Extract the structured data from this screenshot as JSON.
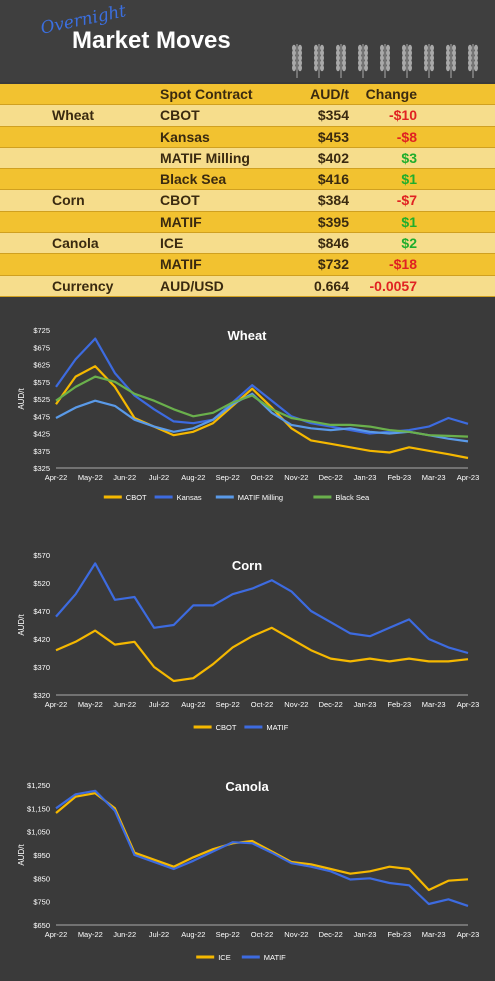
{
  "header": {
    "script_text": "Overnight",
    "title": "Market Moves"
  },
  "table": {
    "columns": [
      "Spot Contract",
      "AUD/t",
      "Change"
    ],
    "rows": [
      {
        "commodity": "Wheat",
        "contract": "CBOT",
        "price": "$354",
        "change": "-$10",
        "dir": "neg"
      },
      {
        "commodity": "",
        "contract": "Kansas",
        "price": "$453",
        "change": "-$8",
        "dir": "neg"
      },
      {
        "commodity": "",
        "contract": "MATIF Milling",
        "price": "$402",
        "change": "$3",
        "dir": "pos"
      },
      {
        "commodity": "",
        "contract": "Black Sea",
        "price": "$416",
        "change": "$1",
        "dir": "pos"
      },
      {
        "commodity": "Corn",
        "contract": "CBOT",
        "price": "$384",
        "change": "-$7",
        "dir": "neg"
      },
      {
        "commodity": "",
        "contract": "MATIF",
        "price": "$395",
        "change": "$1",
        "dir": "pos"
      },
      {
        "commodity": "Canola",
        "contract": "ICE",
        "price": "$846",
        "change": "$2",
        "dir": "pos"
      },
      {
        "commodity": "",
        "contract": "MATIF",
        "price": "$732",
        "change": "-$18",
        "dir": "neg"
      },
      {
        "commodity": "Currency",
        "contract": "AUD/USD",
        "price": "0.664",
        "change": "-0.0057",
        "dir": "neg"
      }
    ]
  },
  "colors": {
    "gold": "#f2c230",
    "pale": "#f6dd8c",
    "neg": "#e02222",
    "pos": "#1fae2c",
    "cbot": "#f5b800",
    "kansas": "#3d6be0",
    "matif_milling": "#5a9ae8",
    "black_sea": "#6ab04c"
  },
  "chart_data": [
    {
      "type": "line",
      "title": "Wheat",
      "ylabel": "AUD/t",
      "xlabel": "",
      "x_ticks": [
        "Apr-22",
        "May-22",
        "Jun-22",
        "Jul-22",
        "Aug-22",
        "Sep-22",
        "Oct-22",
        "Nov-22",
        "Dec-22",
        "Jan-23",
        "Feb-23",
        "Mar-23",
        "Apr-23"
      ],
      "y_ticks": [
        "$325",
        "$375",
        "$425",
        "$475",
        "$525",
        "$575",
        "$625",
        "$675",
        "$725"
      ],
      "ylim": [
        325,
        725
      ],
      "legend_position": "bottom",
      "series": [
        {
          "name": "CBOT",
          "color": "#f5b800",
          "values": [
            510,
            590,
            620,
            560,
            470,
            445,
            420,
            430,
            455,
            505,
            555,
            500,
            440,
            405,
            395,
            385,
            375,
            370,
            385,
            375,
            365,
            354
          ]
        },
        {
          "name": "Kansas",
          "color": "#3d6be0",
          "values": [
            560,
            640,
            700,
            600,
            535,
            495,
            460,
            455,
            465,
            515,
            565,
            520,
            475,
            455,
            445,
            435,
            425,
            430,
            435,
            445,
            470,
            453
          ]
        },
        {
          "name": "MATIF Milling",
          "color": "#5a9ae8",
          "values": [
            470,
            500,
            520,
            505,
            465,
            445,
            430,
            440,
            465,
            510,
            540,
            485,
            450,
            440,
            435,
            440,
            430,
            425,
            430,
            420,
            410,
            402
          ]
        },
        {
          "name": "Black Sea",
          "color": "#6ab04c",
          "values": [
            520,
            560,
            590,
            575,
            540,
            520,
            495,
            475,
            485,
            515,
            535,
            495,
            470,
            460,
            450,
            450,
            445,
            435,
            430,
            420,
            418,
            416
          ]
        }
      ]
    },
    {
      "type": "line",
      "title": "Corn",
      "ylabel": "AUD/t",
      "xlabel": "",
      "x_ticks": [
        "Apr-22",
        "May-22",
        "Jun-22",
        "Jul-22",
        "Aug-22",
        "Sep-22",
        "Oct-22",
        "Nov-22",
        "Dec-22",
        "Jan-23",
        "Feb-23",
        "Mar-23",
        "Apr-23"
      ],
      "y_ticks": [
        "$320",
        "$370",
        "$420",
        "$470",
        "$520",
        "$570"
      ],
      "ylim": [
        320,
        570
      ],
      "legend_position": "bottom",
      "series": [
        {
          "name": "CBOT",
          "color": "#f5b800",
          "values": [
            400,
            415,
            435,
            410,
            415,
            370,
            345,
            350,
            375,
            405,
            425,
            440,
            420,
            400,
            385,
            380,
            385,
            380,
            385,
            380,
            380,
            384
          ]
        },
        {
          "name": "MATIF",
          "color": "#3d6be0",
          "values": [
            460,
            500,
            555,
            490,
            495,
            440,
            445,
            480,
            480,
            500,
            510,
            525,
            505,
            470,
            450,
            430,
            425,
            440,
            455,
            420,
            405,
            395
          ]
        }
      ]
    },
    {
      "type": "line",
      "title": "Canola",
      "ylabel": "AUD/t",
      "xlabel": "",
      "x_ticks": [
        "Apr-22",
        "May-22",
        "Jun-22",
        "Jul-22",
        "Aug-22",
        "Sep-22",
        "Oct-22",
        "Nov-22",
        "Dec-22",
        "Jan-23",
        "Feb-23",
        "Mar-23",
        "Apr-23"
      ],
      "y_ticks": [
        "$650",
        "$750",
        "$850",
        "$950",
        "$1,050",
        "$1,150",
        "$1,250"
      ],
      "ylim": [
        650,
        1250
      ],
      "legend_position": "bottom",
      "series": [
        {
          "name": "ICE",
          "color": "#f5b800",
          "values": [
            1130,
            1200,
            1215,
            1150,
            960,
            930,
            900,
            940,
            975,
            1000,
            1010,
            965,
            920,
            910,
            890,
            870,
            880,
            900,
            890,
            800,
            840,
            846
          ]
        },
        {
          "name": "MATIF",
          "color": "#3d6be0",
          "values": [
            1150,
            1210,
            1225,
            1140,
            950,
            920,
            890,
            925,
            965,
            1005,
            1000,
            960,
            915,
            900,
            880,
            845,
            850,
            830,
            820,
            740,
            760,
            732
          ]
        }
      ]
    }
  ]
}
